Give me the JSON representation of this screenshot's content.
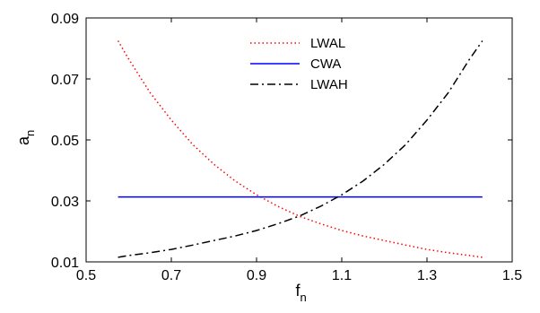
{
  "chart_data": {
    "type": "line",
    "xlabel": "f",
    "xlabel_subscript": "n",
    "ylabel": "a",
    "ylabel_subscript": "n",
    "xlim": [
      0.5,
      1.5
    ],
    "ylim": [
      0.01,
      0.09
    ],
    "xticks": [
      "0.5",
      "0.7",
      "0.9",
      "1.1",
      "1.3",
      "1.5"
    ],
    "yticks": [
      "0.01",
      "0.03",
      "0.05",
      "0.07",
      "0.09"
    ],
    "grid": false,
    "legend_position": "top-center",
    "series": [
      {
        "name": "LWAL",
        "color": "#ff0000",
        "style": "dotted",
        "x": [
          0.575,
          0.6,
          0.65,
          0.7,
          0.75,
          0.8,
          0.85,
          0.9,
          0.95,
          1.0,
          1.05,
          1.1,
          1.15,
          1.2,
          1.25,
          1.3,
          1.35,
          1.4,
          1.43
        ],
        "y": [
          0.0825,
          0.0765,
          0.0655,
          0.0565,
          0.0485,
          0.042,
          0.0365,
          0.032,
          0.0282,
          0.025,
          0.0225,
          0.0203,
          0.0185,
          0.017,
          0.0155,
          0.0141,
          0.013,
          0.0121,
          0.0115
        ]
      },
      {
        "name": "CWA",
        "color": "#0000ff",
        "style": "solid",
        "x": [
          0.575,
          1.43
        ],
        "y": [
          0.0313,
          0.0313
        ]
      },
      {
        "name": "LWAH",
        "color": "#000000",
        "style": "dashdot",
        "x": [
          0.575,
          0.6,
          0.65,
          0.7,
          0.75,
          0.8,
          0.85,
          0.9,
          0.95,
          1.0,
          1.05,
          1.1,
          1.15,
          1.2,
          1.25,
          1.3,
          1.35,
          1.4,
          1.43
        ],
        "y": [
          0.0115,
          0.0121,
          0.013,
          0.0141,
          0.0155,
          0.017,
          0.0185,
          0.0203,
          0.0225,
          0.025,
          0.0282,
          0.032,
          0.0365,
          0.042,
          0.0485,
          0.0565,
          0.0655,
          0.0765,
          0.0825
        ]
      }
    ]
  }
}
